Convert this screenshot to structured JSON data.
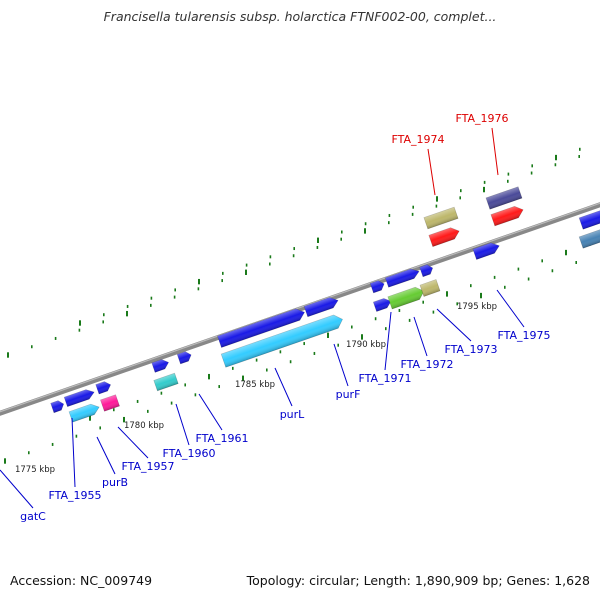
{
  "title": "Francisella tularensis subsp. holarctica FTNF002-00, complet...",
  "footer": {
    "accession": "Accession: NC_009749",
    "summary": "Topology: circular; Length: 1,890,909 bp; Genes: 1,628"
  },
  "colors": {
    "background": "#ffffff",
    "backbone": "#888888",
    "tick": "#1a7a1a",
    "gene_blue": "#1a1ae6",
    "gene_cyan": "#33ccff",
    "gene_teal": "#33cccc",
    "gene_magenta": "#ff1a99",
    "gene_red": "#ff1a1a",
    "gene_khaki": "#bdb76b",
    "gene_slate": "#4a4a99",
    "gene_green": "#66cc33",
    "gene_steel": "#4682b4",
    "label_blue": "#0000cc",
    "label_red": "#dd0000"
  },
  "scale_labels": [
    "1775 kbp",
    "1780 kbp",
    "1785 kbp",
    "1790 kbp",
    "1795 kbp"
  ],
  "gene_labels": [
    {
      "name": "gatC",
      "color": "blue"
    },
    {
      "name": "FTA_1955",
      "color": "blue"
    },
    {
      "name": "purB",
      "color": "blue"
    },
    {
      "name": "FTA_1957",
      "color": "blue"
    },
    {
      "name": "FTA_1960",
      "color": "blue"
    },
    {
      "name": "FTA_1961",
      "color": "blue"
    },
    {
      "name": "purL",
      "color": "blue"
    },
    {
      "name": "purF",
      "color": "blue"
    },
    {
      "name": "FTA_1971",
      "color": "blue"
    },
    {
      "name": "FTA_1972",
      "color": "blue"
    },
    {
      "name": "FTA_1973",
      "color": "blue"
    },
    {
      "name": "FTA_1975",
      "color": "blue"
    },
    {
      "name": "FTA_1974",
      "color": "red"
    },
    {
      "name": "FTA_1976",
      "color": "red"
    }
  ]
}
